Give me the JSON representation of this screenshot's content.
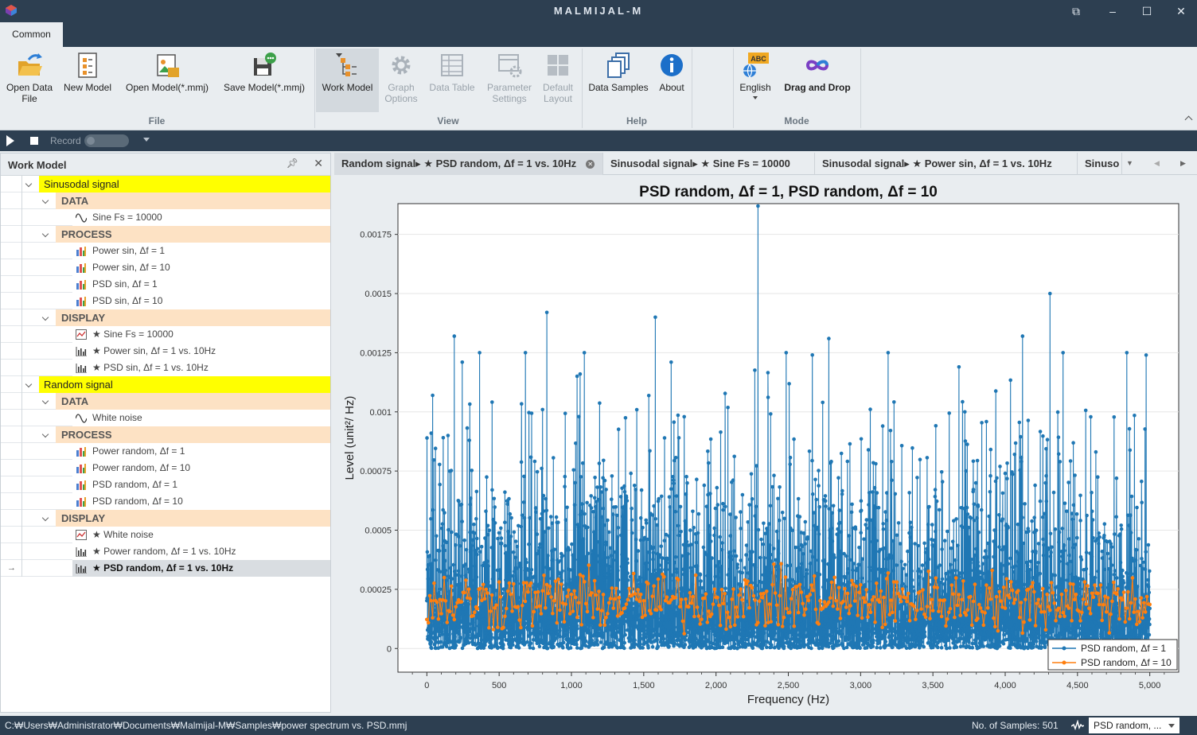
{
  "app": {
    "title": "MALMIJAL-M"
  },
  "ribbon": {
    "tab": "Common",
    "groups": [
      {
        "label": "File",
        "buttons": [
          {
            "label": "Open Data\nFile",
            "icon": "folder-open-icon"
          },
          {
            "label": "New Model",
            "icon": "new-model-icon"
          },
          {
            "label": "Open Model(*.mmj)",
            "icon": "open-model-icon"
          },
          {
            "label": "Save Model(*.mmj)",
            "icon": "save-model-icon"
          }
        ]
      },
      {
        "label": "View",
        "buttons": [
          {
            "label": "Work Model",
            "icon": "work-model-icon"
          },
          {
            "label": "Graph\nOptions",
            "icon": "gear-icon"
          },
          {
            "label": "Data Table",
            "icon": "table-icon"
          },
          {
            "label": "Parameter\nSettings",
            "icon": "parameter-settings-icon"
          },
          {
            "label": "Default\nLayout",
            "icon": "layout-icon"
          }
        ]
      },
      {
        "label": "Help",
        "buttons": [
          {
            "label": "Data Samples",
            "icon": "samples-icon"
          },
          {
            "label": "About",
            "icon": "info-icon"
          }
        ]
      },
      {
        "label": "Mode",
        "buttons": [
          {
            "label": "English",
            "icon": "language-icon",
            "badge": "ABC"
          },
          {
            "label": "Drag and Drop",
            "icon": "infinity-icon"
          }
        ]
      }
    ]
  },
  "record": {
    "label": "Record"
  },
  "workmodel": {
    "title": "Work Model",
    "groups": [
      {
        "name": "Sinusodal signal",
        "sections": [
          {
            "name": "DATA",
            "items": [
              {
                "label": "Sine Fs = 10000",
                "icon": "sine-icon"
              }
            ]
          },
          {
            "name": "PROCESS",
            "items": [
              {
                "label": "Power sin, Δf = 1",
                "icon": "bar-process-icon"
              },
              {
                "label": "Power sin, Δf = 10",
                "icon": "bar-process-icon"
              },
              {
                "label": "PSD sin, Δf = 1",
                "icon": "bar-process-icon"
              },
              {
                "label": "PSD sin, Δf = 10",
                "icon": "bar-process-icon"
              }
            ]
          },
          {
            "name": "DISPLAY",
            "items": [
              {
                "label": "★ Sine Fs = 10000",
                "icon": "line-chart-icon"
              },
              {
                "label": "★ Power sin, Δf = 1 vs. 10Hz",
                "icon": "bar-chart-icon"
              },
              {
                "label": "★ PSD sin, Δf = 1 vs. 10Hz",
                "icon": "bar-chart-icon"
              }
            ]
          }
        ]
      },
      {
        "name": "Random signal",
        "sections": [
          {
            "name": "DATA",
            "items": [
              {
                "label": "White noise",
                "icon": "sine-icon"
              }
            ]
          },
          {
            "name": "PROCESS",
            "items": [
              {
                "label": "Power random, Δf = 1",
                "icon": "bar-process-icon"
              },
              {
                "label": "Power random, Δf = 10",
                "icon": "bar-process-icon"
              },
              {
                "label": "PSD random, Δf = 1",
                "icon": "bar-process-icon"
              },
              {
                "label": "PSD random, Δf = 10",
                "icon": "bar-process-icon"
              }
            ]
          },
          {
            "name": "DISPLAY",
            "items": [
              {
                "label": "★ White noise",
                "icon": "line-chart-icon"
              },
              {
                "label": "★ Power random, Δf = 1 vs. 10Hz",
                "icon": "bar-chart-icon"
              },
              {
                "label": "★ PSD random, Δf = 1 vs. 10Hz",
                "icon": "bar-chart-icon",
                "selected": true
              }
            ]
          }
        ]
      }
    ]
  },
  "doc_tabs": [
    {
      "label": "Random signal▸ ★ PSD random, Δf = 1 vs. 10Hz",
      "active": true
    },
    {
      "label": "Sinusodal signal▸ ★ Sine Fs = 10000"
    },
    {
      "label": "Sinusodal signal▸ ★ Power sin, Δf = 1 vs. 10Hz"
    },
    {
      "label": "Sinuso"
    }
  ],
  "chart_data": {
    "type": "line",
    "title": "PSD random, Δf = 1, PSD random, Δf = 10",
    "xlabel": "Frequency (Hz)",
    "ylabel": "Level (unit²/ Hz)",
    "xlim": [
      -200,
      5200
    ],
    "ylim": [
      -0.0001,
      0.00188
    ],
    "xticks": [
      0,
      500,
      1000,
      1500,
      2000,
      2500,
      3000,
      3500,
      4000,
      4500,
      5000
    ],
    "xtick_labels": [
      "0",
      "500",
      "1,000",
      "1,500",
      "2,000",
      "2,500",
      "3,000",
      "3,500",
      "4,000",
      "4,500",
      "5,000"
    ],
    "yticks": [
      0,
      0.00025,
      0.0005,
      0.00075,
      0.001,
      0.00125,
      0.0015,
      0.00175
    ],
    "ytick_labels": [
      "0",
      "0.00025",
      "0.0005",
      "0.00075",
      "0.001",
      "0.00125",
      "0.0015",
      "0.00175"
    ],
    "legend_position": "bottom-right",
    "series": [
      {
        "name": "PSD random, Δf = 1",
        "color": "#1f77b4",
        "x_start": 0,
        "x_step": 1,
        "x_end": 5000,
        "notable_points": [
          {
            "x": 30,
            "y": 0.00091
          },
          {
            "x": 40,
            "y": 0.00107
          },
          {
            "x": 190,
            "y": 0.00132
          },
          {
            "x": 245,
            "y": 0.00121
          },
          {
            "x": 365,
            "y": 0.00125
          },
          {
            "x": 830,
            "y": 0.00142
          },
          {
            "x": 1060,
            "y": 0.00116
          },
          {
            "x": 1580,
            "y": 0.0014
          },
          {
            "x": 1690,
            "y": 0.00121
          },
          {
            "x": 2290,
            "y": 0.00187
          },
          {
            "x": 2780,
            "y": 0.00131
          },
          {
            "x": 3190,
            "y": 0.00125
          },
          {
            "x": 3680,
            "y": 0.00119
          },
          {
            "x": 4120,
            "y": 0.00132
          },
          {
            "x": 4310,
            "y": 0.0015
          },
          {
            "x": 4975,
            "y": 0.00124
          }
        ]
      },
      {
        "name": "PSD random, Δf = 10",
        "color": "#ff7f0e",
        "x_start": 0,
        "x_step": 10,
        "x_end": 5000,
        "typical_range": [
          5e-05,
          0.0004
        ],
        "typical_mean": 0.0002
      }
    ]
  },
  "status": {
    "path": "C:₩Users₩Administrator₩Documents₩Malmijal-M₩Samples₩power spectrum vs. PSD.mmj",
    "samples": "No. of Samples: 501",
    "selector": "PSD random, ..."
  }
}
